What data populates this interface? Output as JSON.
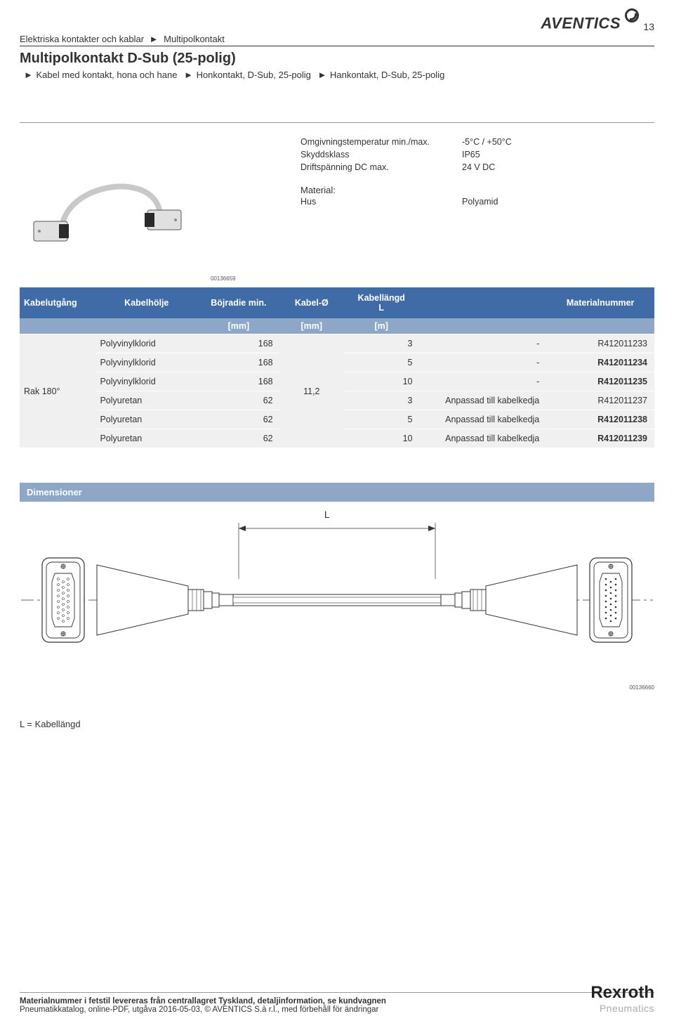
{
  "page_number": "13",
  "brand_top": "AVENTICS",
  "header": {
    "section": "Elektriska kontakter och kablar",
    "arrow": "►",
    "subsection": "Multipolkontakt"
  },
  "title": "Multipolkontakt D-Sub (25-polig)",
  "subtitle_parts": [
    "Kabel med kontakt, hona och hane",
    "Honkontakt, D-Sub, 25-polig",
    "Hankontakt, D-Sub, 25-polig"
  ],
  "arrow": "►",
  "info": {
    "rows": [
      {
        "label": "Omgivningstemperatur min./max.",
        "value": "-5°C / +50°C"
      },
      {
        "label": "Skyddsklass",
        "value": "IP65"
      },
      {
        "label": "Driftspänning DC max.",
        "value": "24 V DC"
      }
    ],
    "material_label": "Material:",
    "material_rows": [
      {
        "label": "Hus",
        "value": "Polyamid"
      }
    ]
  },
  "image_code_1": "00136659",
  "table": {
    "headers": {
      "col1": "Kabelutgång",
      "col2": "Kabelhölje",
      "col3": "Böjradie min.",
      "col4": "Kabel-Ø",
      "col5_line1": "Kabellängd",
      "col5_line2": "L",
      "col6": "",
      "col7": "Materialnummer"
    },
    "units": {
      "col3": "[mm]",
      "col4": "[mm]",
      "col5": "[m]"
    },
    "rowgroup_label": "Rak 180°",
    "kabel_o": "11,2",
    "rows": [
      {
        "kabelholje": "Polyvinylklorid",
        "bojradie": "168",
        "kabel_o": "",
        "langd": "3",
        "note": "-",
        "mat": "R412011233",
        "bold": false
      },
      {
        "kabelholje": "Polyvinylklorid",
        "bojradie": "168",
        "kabel_o": "",
        "langd": "5",
        "note": "-",
        "mat": "R412011234",
        "bold": true
      },
      {
        "kabelholje": "Polyvinylklorid",
        "bojradie": "168",
        "kabel_o": "",
        "langd": "10",
        "note": "-",
        "mat": "R412011235",
        "bold": true
      },
      {
        "kabelholje": "Polyuretan",
        "bojradie": "62",
        "kabel_o": "",
        "langd": "3",
        "note": "Anpassad till kabelkedja",
        "mat": "R412011237",
        "bold": false
      },
      {
        "kabelholje": "Polyuretan",
        "bojradie": "62",
        "kabel_o": "",
        "langd": "5",
        "note": "Anpassad till kabelkedja",
        "mat": "R412011238",
        "bold": true
      },
      {
        "kabelholje": "Polyuretan",
        "bojradie": "62",
        "kabel_o": "",
        "langd": "10",
        "note": "Anpassad till kabelkedja",
        "mat": "R412011239",
        "bold": true
      }
    ]
  },
  "dimensions_header": "Dimensioner",
  "dim_L": "L",
  "image_code_2": "00136660",
  "legend": "L = Kabellängd",
  "footer_line1": "Materialnummer i fetstil levereras från centrallagret Tyskland, detaljinformation, se kundvagnen",
  "footer_line2": "Pneumatikkatalog, online-PDF, utgåva 2016-05-03, © AVENTICS S.à r.l., med förbehåll för ändringar",
  "footer_logo1": "Rexroth",
  "footer_logo2": "Pneumatics",
  "colors": {
    "table_header_bg": "#3f6ba6",
    "table_subheader_bg": "#8ea7c6",
    "table_cell_bg": "#f0f0f0"
  }
}
